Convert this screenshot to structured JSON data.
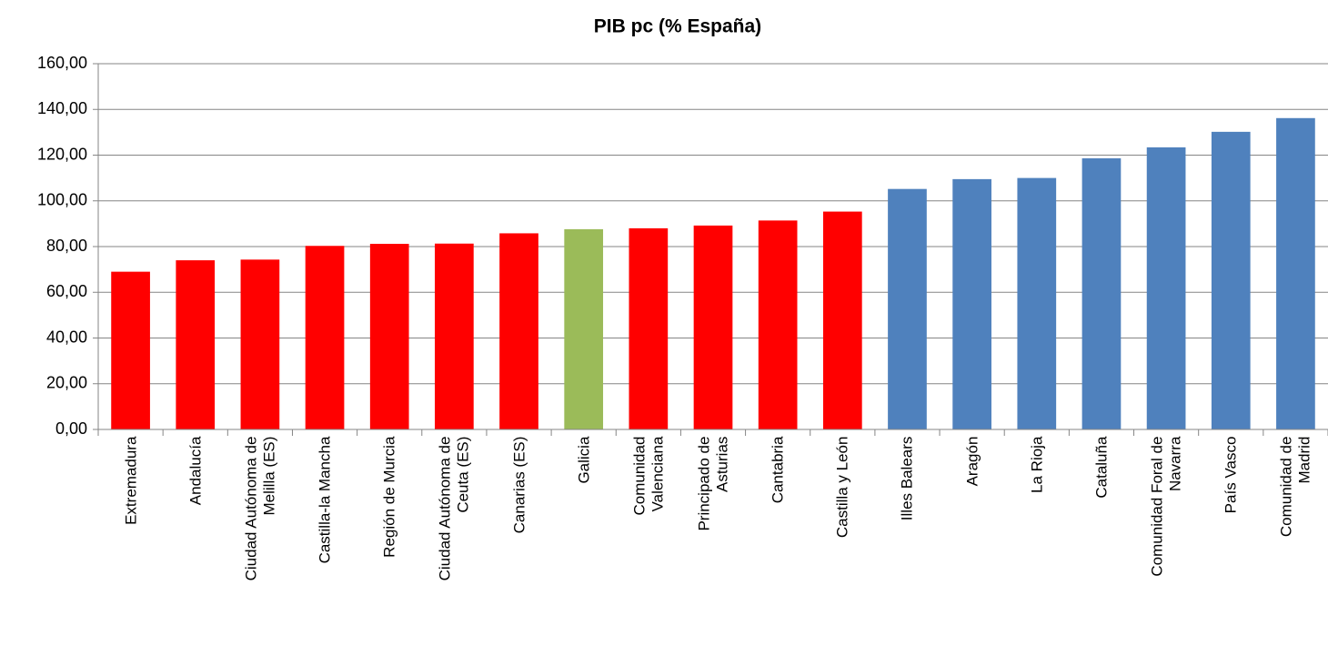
{
  "chart_data": {
    "type": "bar",
    "title": "PIB pc (% España)",
    "categories": [
      "Extremadura",
      "Andalucía",
      "Ciudad Autónoma de Melilla (ES)",
      "Castilla-la Mancha",
      "Región de Murcia",
      "Ciudad Autónoma de Ceuta (ES)",
      "Canarias (ES)",
      "Galicia",
      "Comunidad Valenciana",
      "Principado de Asturias",
      "Cantabria",
      "Castilla y León",
      "Illes Balears",
      "Aragón",
      "La Rioja",
      "Cataluña",
      "Comunidad Foral de Navarra",
      "País Vasco",
      "Comunidad de Madrid"
    ],
    "values": [
      69,
      74,
      74.3,
      80.3,
      81.2,
      81.3,
      85.8,
      87.6,
      88,
      89.2,
      91.4,
      95.3,
      105.2,
      109.5,
      110,
      118.6,
      123.4,
      130.2,
      136.2
    ],
    "colors": [
      "#ff0000",
      "#ff0000",
      "#ff0000",
      "#ff0000",
      "#ff0000",
      "#ff0000",
      "#ff0000",
      "#9bbb59",
      "#ff0000",
      "#ff0000",
      "#ff0000",
      "#ff0000",
      "#4f81bd",
      "#4f81bd",
      "#4f81bd",
      "#4f81bd",
      "#4f81bd",
      "#4f81bd",
      "#4f81bd"
    ],
    "ylim": [
      0,
      160
    ],
    "yticks": [
      {
        "value": 0,
        "label": "0,00"
      },
      {
        "value": 20,
        "label": "20,00"
      },
      {
        "value": 40,
        "label": "40,00"
      },
      {
        "value": 60,
        "label": "60,00"
      },
      {
        "value": 80,
        "label": "80,00"
      },
      {
        "value": 100,
        "label": "100,00"
      },
      {
        "value": 120,
        "label": "120,00"
      },
      {
        "value": 140,
        "label": "140,00"
      },
      {
        "value": 160,
        "label": "160,00"
      }
    ],
    "grid": true
  }
}
